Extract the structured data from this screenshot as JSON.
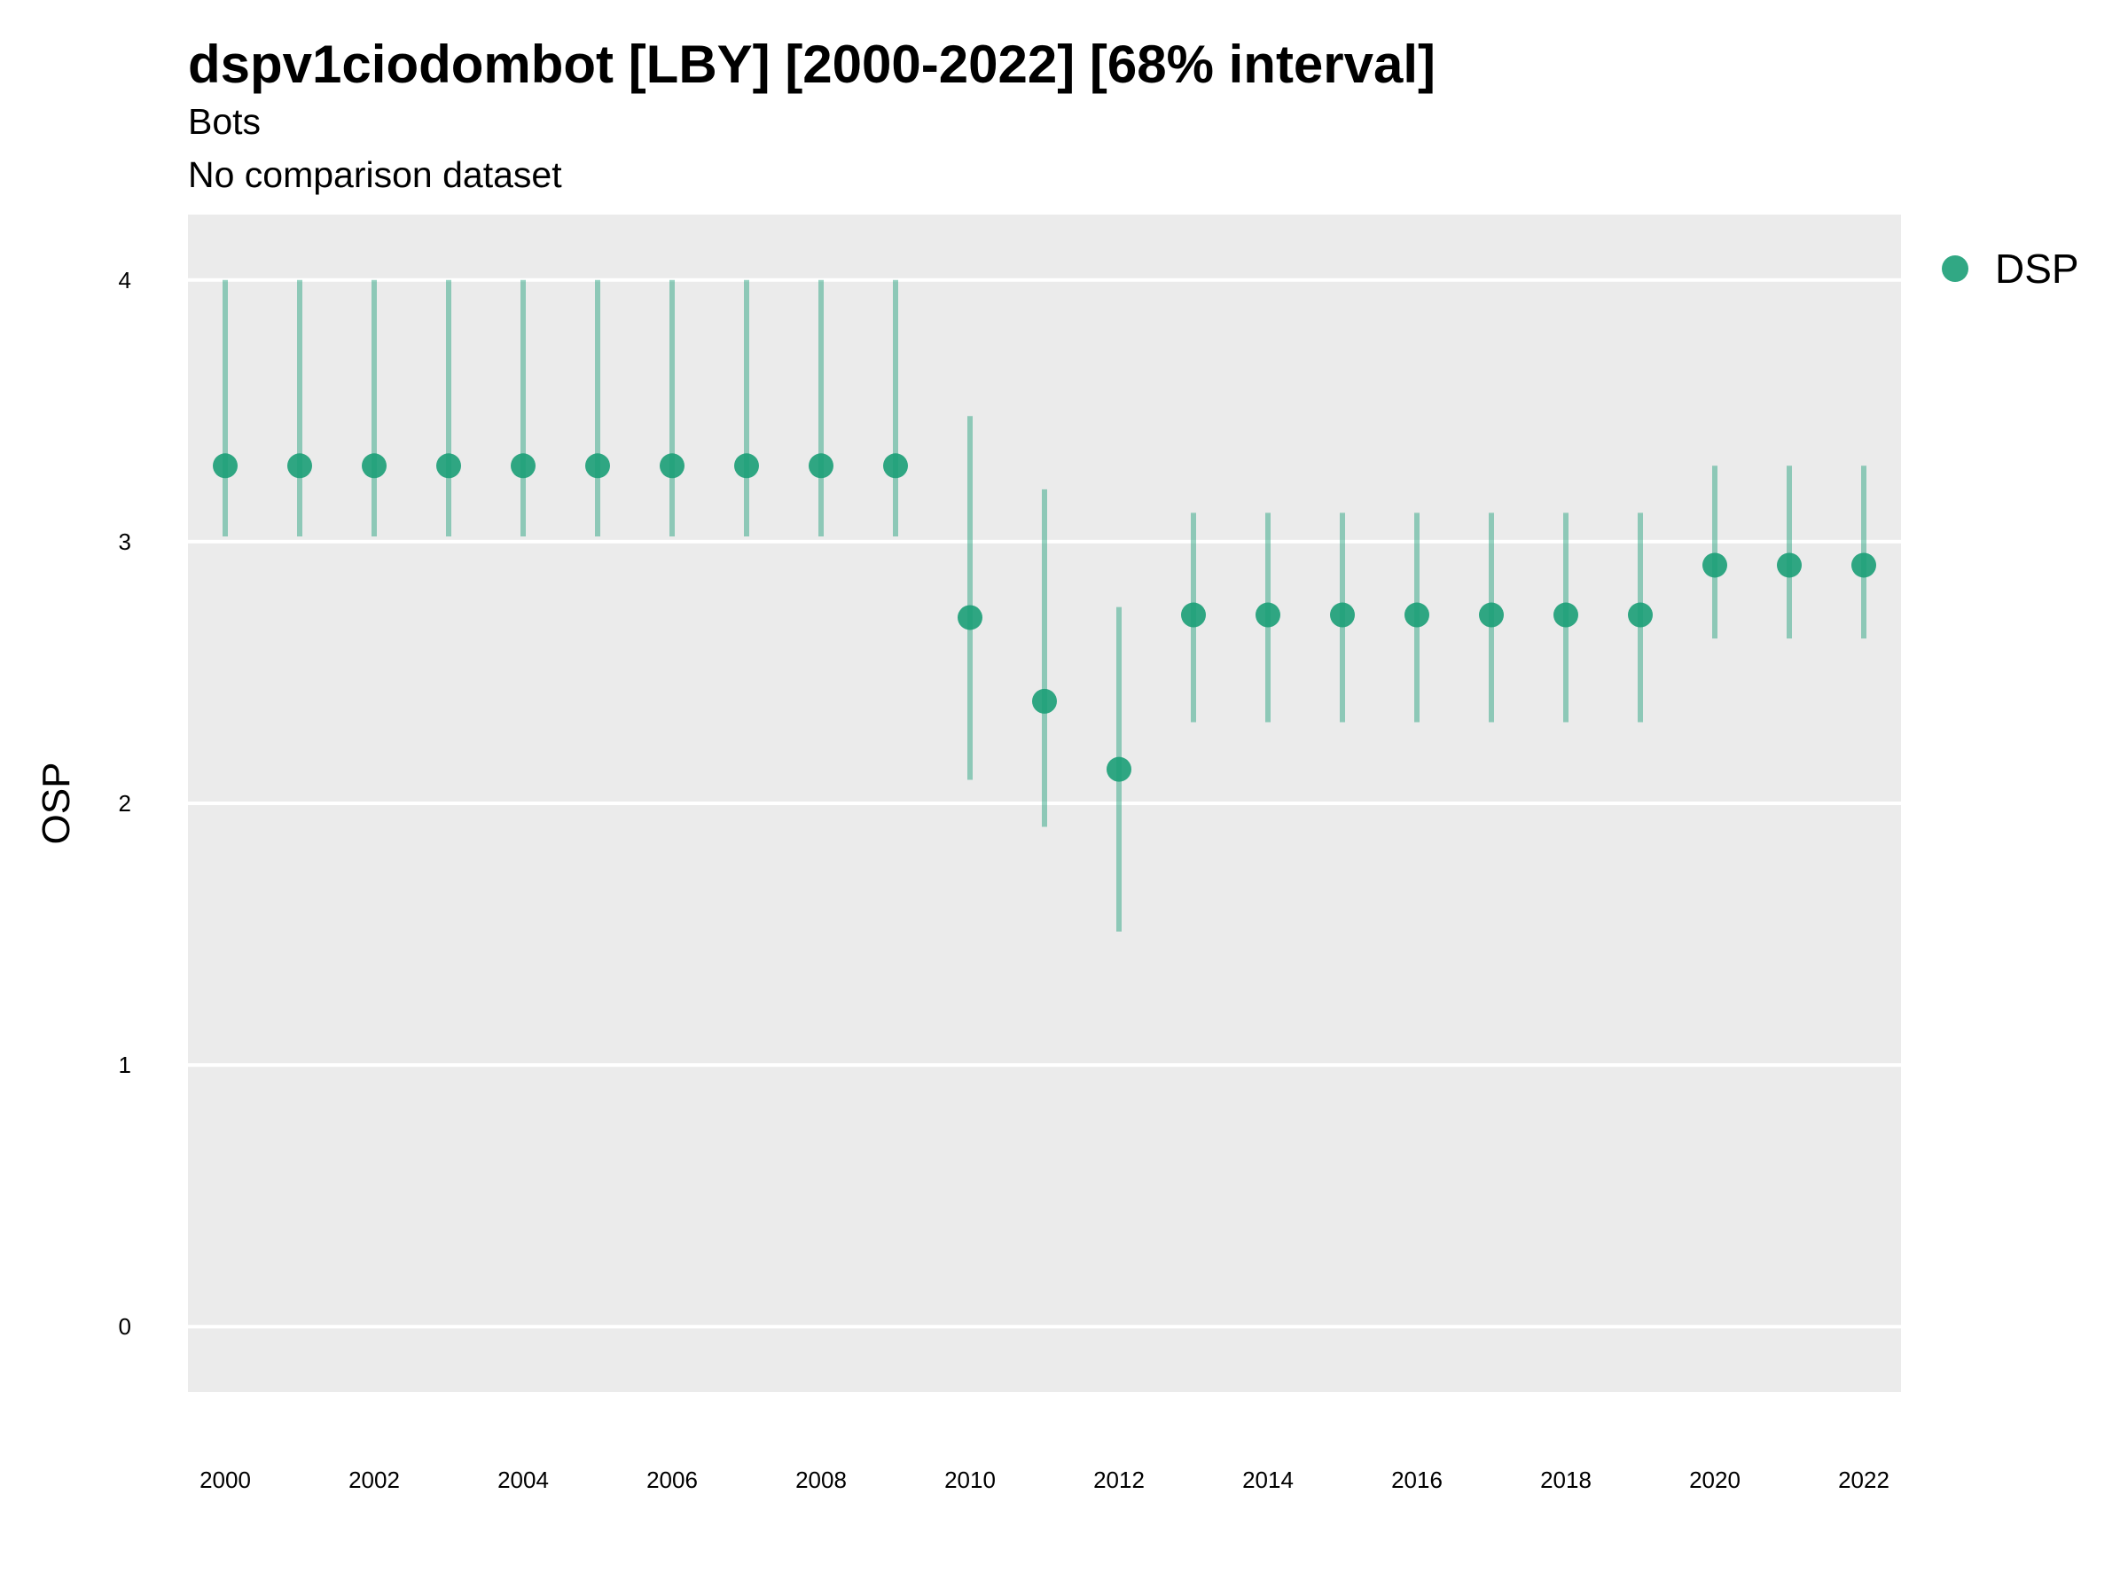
{
  "chart_data": {
    "type": "scatter",
    "title": "dspv1ciodombot [LBY] [2000-2022] [68% interval]",
    "subtitle": "Bots",
    "caption": "No comparison dataset",
    "ylabel": "OSP",
    "xlabel": "",
    "ylim": [
      -0.25,
      4.25
    ],
    "xlim": [
      1999.5,
      2022.5
    ],
    "y_ticks": [
      0,
      1,
      2,
      3,
      4
    ],
    "x_ticks": [
      2000,
      2002,
      2004,
      2006,
      2008,
      2010,
      2012,
      2014,
      2016,
      2018,
      2020,
      2022
    ],
    "grid": true,
    "legend_position": "right",
    "series": [
      {
        "name": "DSP",
        "color": "#1b9e77",
        "x": [
          2000,
          2001,
          2002,
          2003,
          2004,
          2005,
          2006,
          2007,
          2008,
          2009,
          2010,
          2011,
          2012,
          2013,
          2014,
          2015,
          2016,
          2017,
          2018,
          2019,
          2020,
          2021,
          2022
        ],
        "y": [
          3.29,
          3.29,
          3.29,
          3.29,
          3.29,
          3.29,
          3.29,
          3.29,
          3.29,
          3.29,
          2.71,
          2.39,
          2.13,
          2.72,
          2.72,
          2.72,
          2.72,
          2.72,
          2.72,
          2.72,
          2.91,
          2.91,
          2.91
        ],
        "lower": [
          3.02,
          3.02,
          3.02,
          3.02,
          3.02,
          3.02,
          3.02,
          3.02,
          3.02,
          3.02,
          2.09,
          1.91,
          1.51,
          2.31,
          2.31,
          2.31,
          2.31,
          2.31,
          2.31,
          2.31,
          2.63,
          2.63,
          2.63
        ],
        "upper": [
          4.0,
          4.0,
          4.0,
          4.0,
          4.0,
          4.0,
          4.0,
          4.0,
          4.0,
          4.0,
          3.48,
          3.2,
          2.75,
          3.11,
          3.11,
          3.11,
          3.11,
          3.11,
          3.11,
          3.11,
          3.29,
          3.29,
          3.29
        ]
      }
    ]
  }
}
